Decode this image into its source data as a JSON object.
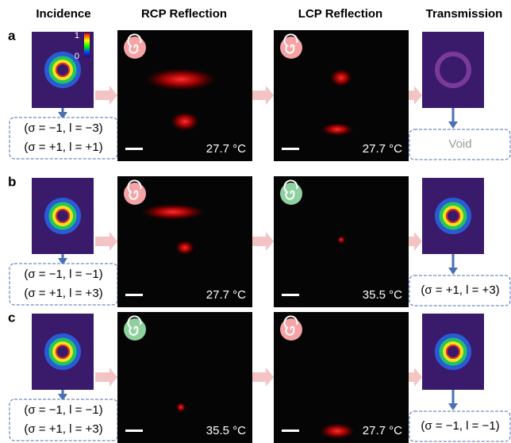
{
  "column_headers": [
    "Incidence",
    "RCP Reflection",
    "LCP Reflection",
    "Transmission"
  ],
  "colorbar": {
    "max": "1",
    "min": "0"
  },
  "rows": [
    {
      "label": "a",
      "incidence_box": [
        "(σ = −1, l = −3)",
        "(σ = +1, l = +1)"
      ],
      "rcp_temperature": "27.7 °C",
      "lcp_temperature": "27.7 °C",
      "transmission_box": [
        "Void"
      ]
    },
    {
      "label": "b",
      "incidence_box": [
        "(σ = −1, l = −1)",
        "(σ = +1, l = +3)"
      ],
      "rcp_temperature": "27.7 °C",
      "lcp_temperature": "35.5 °C",
      "transmission_box": [
        "(σ = +1, l = +3)"
      ]
    },
    {
      "label": "c",
      "incidence_box": [
        "(σ = −1, l = −1)",
        "(σ = +1, l = +3)"
      ],
      "rcp_temperature": "35.5 °C",
      "lcp_temperature": "27.7 °C",
      "transmission_box": [
        "(σ = −1, l = −1)"
      ]
    }
  ]
}
